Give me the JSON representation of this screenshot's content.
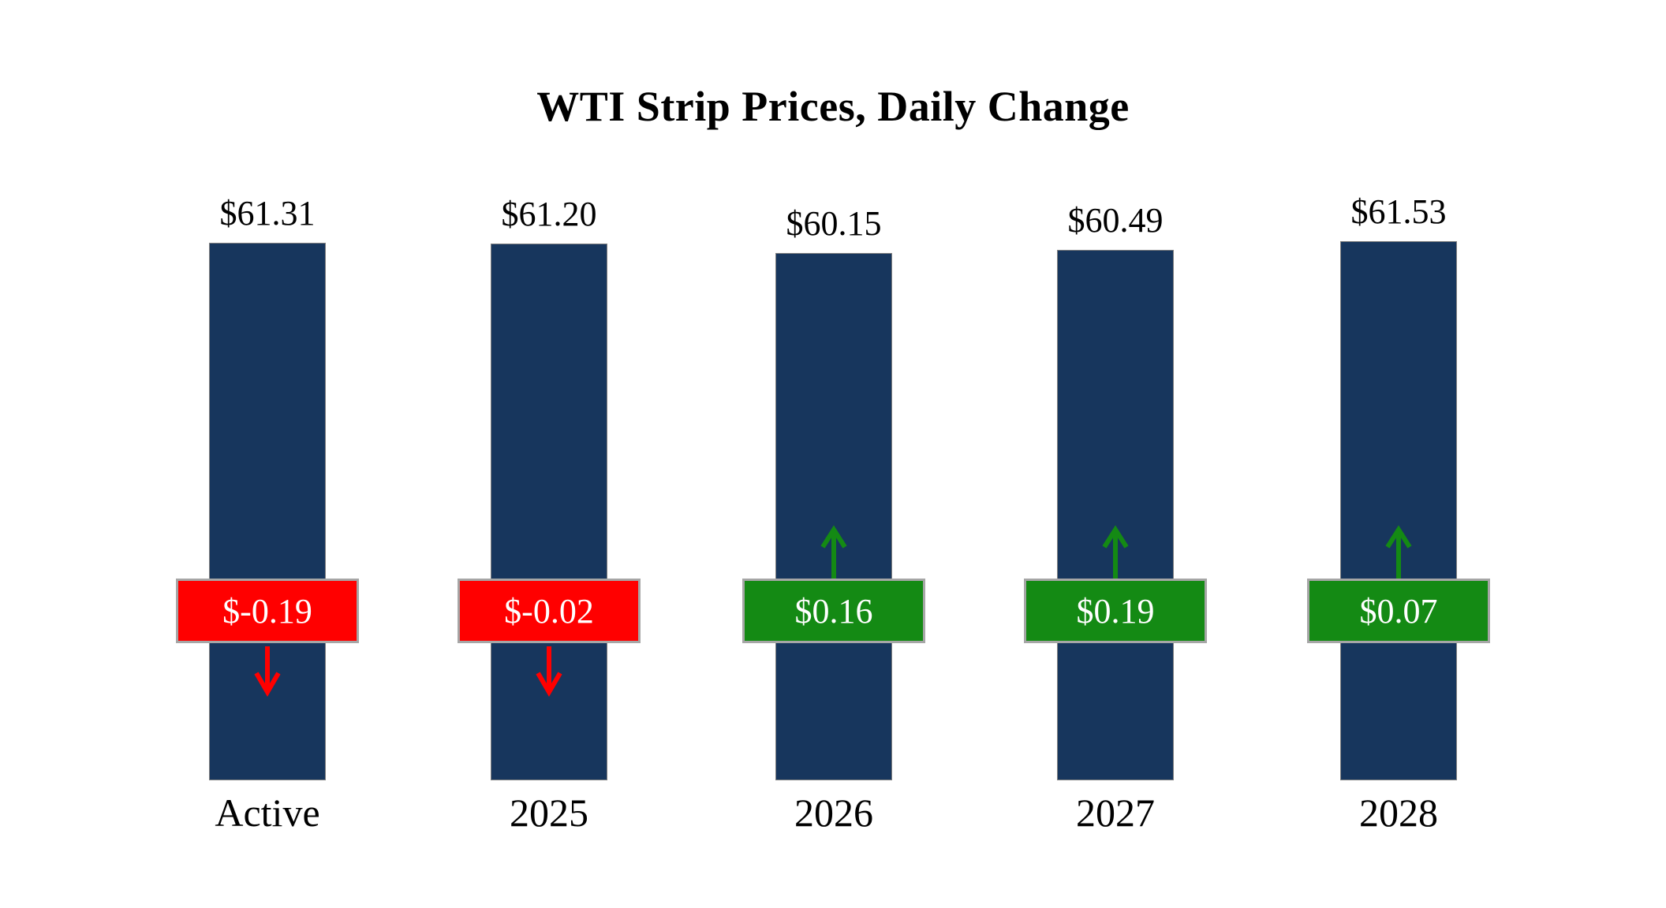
{
  "title": "WTI Strip Prices, Daily Change",
  "colors": {
    "bar": "#17365D",
    "bar_border": "#808080",
    "negative": "#FF0000",
    "positive": "#148A14",
    "badge_border": "#A6A6A6",
    "badge_text": "#FFFFFF",
    "text": "#000000"
  },
  "chart_data": {
    "type": "bar",
    "title": "WTI Strip Prices, Daily Change",
    "categories": [
      "Active",
      "2025",
      "2026",
      "2027",
      "2028"
    ],
    "series": [
      {
        "name": "WTI Strip Price",
        "values": [
          61.31,
          61.2,
          60.15,
          60.49,
          61.53
        ]
      },
      {
        "name": "Daily Change",
        "values": [
          -0.19,
          -0.02,
          0.16,
          0.19,
          0.07
        ]
      }
    ],
    "ylim": [
      0,
      63
    ],
    "grid": false,
    "legend_position": "none",
    "bars": [
      {
        "category": "Active",
        "price": 61.31,
        "price_label": "$61.31",
        "change": -0.19,
        "change_label": "$-0.19",
        "direction": "down"
      },
      {
        "category": "2025",
        "price": 61.2,
        "price_label": "$61.20",
        "change": -0.02,
        "change_label": "$-0.02",
        "direction": "down"
      },
      {
        "category": "2026",
        "price": 60.15,
        "price_label": "$60.15",
        "change": 0.16,
        "change_label": "$0.16",
        "direction": "up"
      },
      {
        "category": "2027",
        "price": 60.49,
        "price_label": "$60.49",
        "change": 0.19,
        "change_label": "$0.19",
        "direction": "up"
      },
      {
        "category": "2028",
        "price": 61.53,
        "price_label": "$61.53",
        "change": 0.07,
        "change_label": "$0.07",
        "direction": "up"
      }
    ]
  }
}
